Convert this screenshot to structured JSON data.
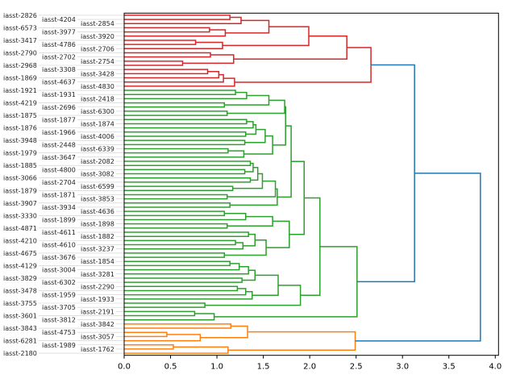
{
  "chart_data": {
    "type": "dendrogram",
    "orientation": "right",
    "title": "",
    "xlabel": "",
    "ylabel": "",
    "xlim": [
      0,
      4.035
    ],
    "xticks": [
      0.0,
      0.5,
      1.0,
      1.5,
      2.0,
      2.5,
      3.0,
      3.5,
      4.0
    ],
    "xtick_labels": [
      "0.0",
      "0.5",
      "1.0",
      "1.5",
      "2.0",
      "2.5",
      "3.0",
      "3.5",
      "4.0"
    ],
    "grid": false,
    "link_color_above_threshold": "#1f77b4",
    "labels": [
      "iasst-2826",
      "iasst-4204",
      "iasst-2854",
      "iasst-6573",
      "iasst-3977",
      "iasst-3920",
      "iasst-3417",
      "iasst-4786",
      "iasst-2706",
      "iasst-2790",
      "iasst-2702",
      "iasst-2754",
      "iasst-2968",
      "iasst-3308",
      "iasst-3428",
      "iasst-1869",
      "iasst-4637",
      "iasst-4830",
      "iasst-1921",
      "iasst-1931",
      "iasst-2418",
      "iasst-4219",
      "iasst-2696",
      "iasst-6300",
      "iasst-1875",
      "iasst-1877",
      "iasst-1874",
      "iasst-1876",
      "iasst-1966",
      "iasst-4006",
      "iasst-3948",
      "iasst-2448",
      "iasst-6339",
      "iasst-1979",
      "iasst-3647",
      "iasst-2082",
      "iasst-1885",
      "iasst-4800",
      "iasst-3082",
      "iasst-3066",
      "iasst-2704",
      "iasst-6599",
      "iasst-1879",
      "iasst-1871",
      "iasst-3853",
      "iasst-3907",
      "iasst-3934",
      "iasst-4636",
      "iasst-3330",
      "iasst-1899",
      "iasst-1898",
      "iasst-4871",
      "iasst-4611",
      "iasst-1882",
      "iasst-4210",
      "iasst-4610",
      "iasst-3237",
      "iasst-4675",
      "iasst-3676",
      "iasst-1854",
      "iasst-4129",
      "iasst-3004",
      "iasst-3281",
      "iasst-3829",
      "iasst-6302",
      "iasst-2290",
      "iasst-3478",
      "iasst-1959",
      "iasst-1933",
      "iasst-3755",
      "iasst-3705",
      "iasst-2191",
      "iasst-3601",
      "iasst-3812",
      "iasst-3842",
      "iasst-3843",
      "iasst-4753",
      "iasst-3057",
      "iasst-6281",
      "iasst-1989",
      "iasst-1762",
      "iasst-2180"
    ],
    "clusters": {
      "red": {
        "color": "#d62728",
        "tree": [
          2.66,
          [
            2.4,
            [
              1.99,
              [
                1.56,
                [
                  1.26,
                  [
                    1.14,
                    0,
                    1
                  ],
                  2
                ],
                [
                  1.09,
                  [
                    0.92,
                    3,
                    4
                  ],
                  5
                ]
              ],
              [
                1.06,
                [
                  0.77,
                  6,
                  7
                ],
                8
              ]
            ],
            [
              1.18,
              [
                0.93,
                9,
                10
              ],
              [
                0.63,
                11,
                12
              ]
            ]
          ],
          [
            1.19,
            [
              1.07,
              [
                1.02,
                [
                  0.9,
                  13,
                  14
                ],
                15
              ],
              16
            ],
            17
          ]
        ]
      },
      "green": {
        "color": "#2ca02c",
        "tree": [
          2.51,
          [
            2.11,
            [
              1.94,
              [
                1.8,
                [
                  1.74,
                  [
                    1.73,
                    [
                      1.56,
                      [
                        1.32,
                        [
                          1.2,
                          18,
                          19
                        ],
                        20
                      ],
                      [
                        1.08,
                        21,
                        22
                      ]
                    ],
                    [
                      1.11,
                      23,
                      24
                    ]
                  ],
                  [
                    1.6,
                    [
                      1.52,
                      [
                        1.42,
                        [
                          1.39,
                          [
                            1.32,
                            25,
                            26
                          ],
                          27
                        ],
                        [
                          1.31,
                          28,
                          29
                        ]
                      ],
                      [
                        1.3,
                        30,
                        31
                      ]
                    ],
                    [
                      1.29,
                      [
                        1.12,
                        32,
                        33
                      ],
                      34
                    ]
                  ]
                ],
                [
                  1.65,
                  [
                    1.63,
                    [
                      1.49,
                      [
                        1.44,
                        [
                          1.39,
                          [
                            1.36,
                            35,
                            36
                          ],
                          [
                            1.3,
                            37,
                            38
                          ]
                        ],
                        [
                          1.36,
                          39,
                          40
                        ]
                      ],
                      [
                        1.17,
                        41,
                        42
                      ]
                    ],
                    [
                      1.11,
                      43,
                      44
                    ]
                  ],
                  [
                    1.14,
                    45,
                    46
                  ]
                ]
              ],
              [
                1.78,
                [
                  1.6,
                  [
                    1.31,
                    [
                      1.08,
                      47,
                      48
                    ],
                    49
                  ],
                  [
                    1.11,
                    50,
                    51
                  ]
                ],
                [
                  1.53,
                  [
                    1.41,
                    [
                      1.34,
                      52,
                      53
                    ],
                    [
                      1.28,
                      [
                        1.2,
                        54,
                        55
                      ],
                      56
                    ]
                  ],
                  [
                    1.08,
                    57,
                    58
                  ]
                ]
              ]
            ],
            [
              1.9,
              [
                1.66,
                [
                  1.41,
                  [
                    1.34,
                    [
                      1.24,
                      [
                        1.14,
                        59,
                        60
                      ],
                      61
                    ],
                    62
                  ],
                  [
                    1.27,
                    63,
                    64
                  ]
                ],
                [
                  1.38,
                  [
                    1.31,
                    [
                      1.22,
                      65,
                      66
                    ],
                    67
                  ],
                  68
                ]
              ],
              [
                0.87,
                69,
                70
              ]
            ]
          ],
          [
            0.97,
            [
              0.76,
              71,
              72
            ],
            73
          ]
        ]
      },
      "orange": {
        "color": "#ff7f0e",
        "tree": [
          2.49,
          [
            1.33,
            [
              1.15,
              74,
              75
            ],
            [
              0.82,
              [
                0.46,
                76,
                77
              ],
              78
            ]
          ],
          [
            1.12,
            [
              0.53,
              79,
              80
            ],
            81
          ]
        ]
      }
    },
    "root": [
      3.84,
      [
        3.13,
        "red",
        "green"
      ],
      "orange"
    ]
  }
}
